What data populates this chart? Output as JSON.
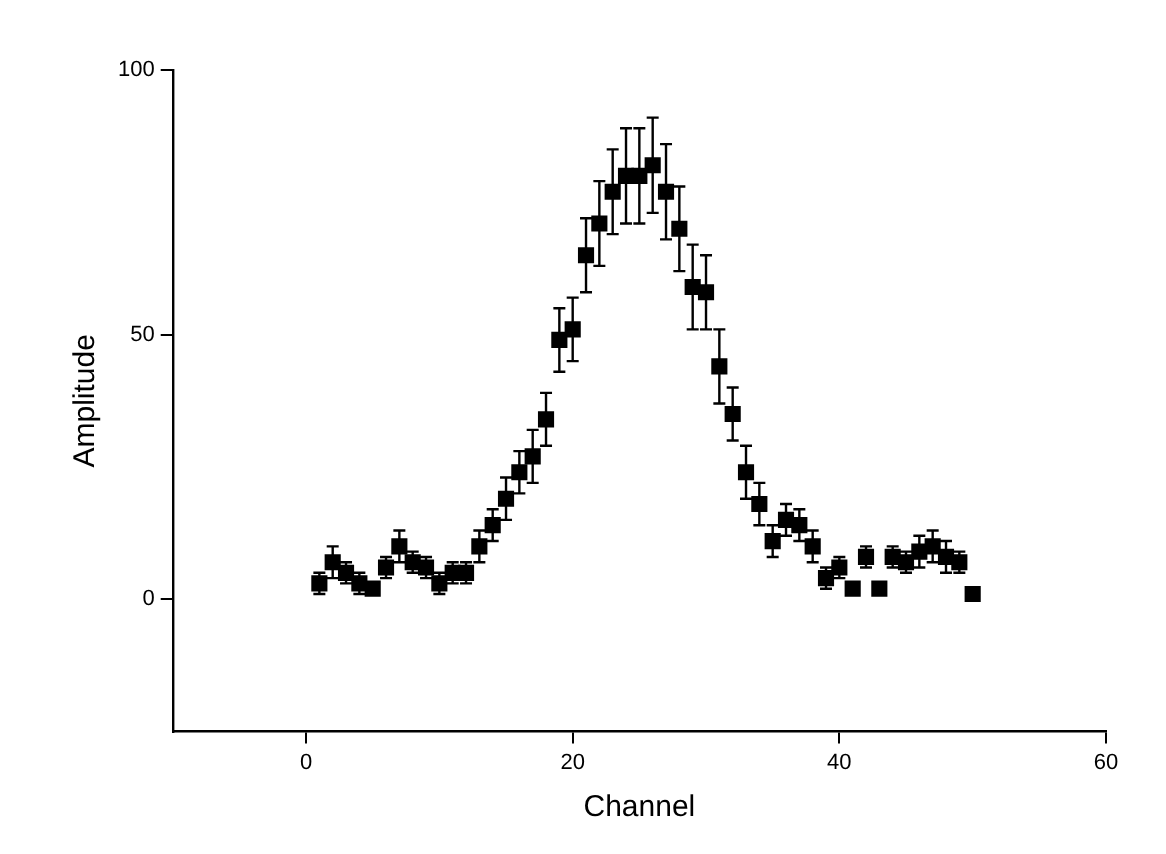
{
  "chart_data": {
    "type": "scatter",
    "xlabel": "Channel",
    "ylabel": "Amplitude",
    "x": [
      1,
      2,
      3,
      4,
      5,
      6,
      7,
      8,
      9,
      10,
      11,
      12,
      13,
      14,
      15,
      16,
      17,
      18,
      19,
      20,
      21,
      22,
      23,
      24,
      25,
      26,
      27,
      28,
      29,
      30,
      31,
      32,
      33,
      34,
      35,
      36,
      37,
      38,
      39,
      40,
      41,
      42,
      43,
      44,
      45,
      46,
      47,
      48,
      49,
      50
    ],
    "series": [
      {
        "color": "#000000",
        "values": [
          3,
          7,
          5,
          3,
          2,
          6,
          10,
          7,
          6,
          3,
          5,
          5,
          10,
          14,
          19,
          24,
          27,
          34,
          49,
          51,
          65,
          71,
          77,
          80,
          80,
          82,
          77,
          70,
          59,
          58,
          44,
          35,
          24,
          18,
          11,
          15,
          14,
          10,
          4,
          6,
          2,
          8,
          2,
          8,
          7,
          9,
          10,
          8,
          7,
          1
        ],
        "errors": [
          2,
          3,
          2,
          2,
          null,
          2,
          3,
          2,
          2,
          2,
          2,
          2,
          3,
          3,
          4,
          4,
          5,
          5,
          6,
          6,
          7,
          8,
          8,
          9,
          9,
          9,
          9,
          8,
          8,
          7,
          7,
          5,
          5,
          4,
          3,
          3,
          3,
          3,
          2,
          2,
          null,
          2,
          null,
          2,
          2,
          3,
          3,
          3,
          2,
          null
        ]
      }
    ],
    "xlim": [
      -10,
      60
    ],
    "xticks": [
      0,
      20,
      40,
      60
    ],
    "ylim": [
      -25,
      100
    ],
    "yticks": [
      0,
      50,
      100
    ],
    "marker": "square",
    "grid": false,
    "legend": false
  }
}
